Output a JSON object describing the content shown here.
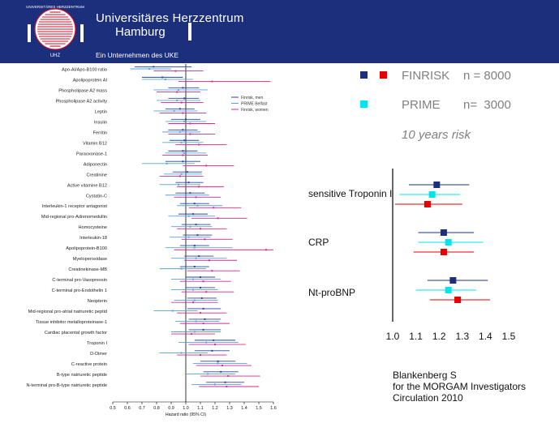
{
  "header": {
    "brand_line1": "Universitäres Herzzentrum",
    "brand_line2": "Hamburg",
    "subtitle": "Ein Unternehmen des UKE",
    "logo_ring_text": "UNIVERSITÄRES HERZZENTRUM",
    "logo_abbr": "UHZ",
    "colors": {
      "band": "#1c2f7d",
      "logo": "#c8102e"
    }
  },
  "legend": {
    "finrisk": {
      "label": "FINRISK",
      "n": "n = 8000",
      "colors": [
        "#1c2f7d",
        "#e60000"
      ]
    },
    "prime": {
      "label": "PRIME",
      "n": "n=  3000",
      "color": "#00e5ee"
    },
    "horizon": "10 years risk"
  },
  "citation": [
    "Blankenberg S",
    "for the MORGAM Investigators",
    "Circulation 2010"
  ],
  "chart_data": [
    {
      "type": "forest",
      "xlabel": "Hazard ratio (95% CI)",
      "xlim": [
        0.5,
        1.6
      ],
      "xticks": [
        0.5,
        0.6,
        0.7,
        0.8,
        0.9,
        1.0,
        1.1,
        1.2,
        1.3,
        1.4,
        1.5,
        1.6
      ],
      "xtick_labels": [
        "0.5",
        "0.6",
        "0.7",
        "0.8",
        "0.9",
        "1.0",
        "1.1",
        "1.2",
        "1.3",
        "1.4",
        "1.5",
        "1.6"
      ],
      "reference": 1.0,
      "legend_position": "upper-right",
      "series": [
        {
          "name": "Finrisk, men",
          "color": "#2b45a0"
        },
        {
          "name": "PRIME Belfast",
          "color": "#5aa0e0"
        },
        {
          "name": "Finrisk, women",
          "color": "#d62a8c"
        }
      ],
      "categories": [
        "Apo-AI/Apo-B100 ratio",
        "Apolipoprotein AI",
        "Phospholipase A2 mass",
        "Phospholipase A2 activity",
        "Leptin",
        "Insulin",
        "Ferritin",
        "Vitamin B12",
        "Paraoxonase-1",
        "Adiponectin",
        "Creatinine",
        "Active vitamine B12",
        "Cystatin-C",
        "Interleukin-1 receptor antagonist",
        "Mid-regional pro-Adrenomedullin",
        "Homocysteine",
        "Interleukin-18",
        "Apolipoprotein-B100",
        "Myeloperoxidase",
        "Creatinekinase-MB",
        "C-terminal pro-Vasopressin",
        "C-terminal pro-Endothelin 1",
        "Neopterin",
        "Mid-regional pro-atrial natriuretic peptid",
        "Tissue inhibitor metalloproteinase-1",
        "Cardiac placental growth factor",
        "Troponin I",
        "D-Dimer",
        "C-reactive protein",
        "B-type natriuretic peptide",
        "N-terminal pro-B-type natriuretic peptide"
      ],
      "estimates": {
        "Finrisk, men": [
          [
            0.78,
            0.65,
            1.04
          ],
          [
            0.84,
            0.7,
            0.98
          ],
          [
            0.98,
            0.88,
            1.09
          ],
          [
            0.99,
            0.88,
            1.09
          ],
          [
            0.96,
            0.86,
            1.06
          ],
          [
            1.0,
            0.9,
            1.1
          ],
          [
            0.98,
            0.88,
            1.08
          ],
          [
            0.99,
            0.89,
            1.09
          ],
          [
            0.98,
            0.88,
            1.08
          ],
          [
            0.98,
            0.86,
            1.1
          ],
          [
            1.01,
            0.91,
            1.11
          ],
          [
            1.02,
            0.93,
            1.12
          ],
          [
            1.03,
            0.93,
            1.13
          ],
          [
            1.06,
            0.96,
            1.16
          ],
          [
            1.05,
            0.95,
            1.15
          ],
          [
            1.07,
            0.97,
            1.17
          ],
          [
            1.08,
            0.98,
            1.18
          ],
          [
            1.06,
            0.96,
            1.16
          ],
          [
            1.09,
            0.99,
            1.19
          ],
          [
            1.06,
            0.96,
            1.16
          ],
          [
            1.1,
            1.0,
            1.2
          ],
          [
            1.1,
            1.0,
            1.2
          ],
          [
            1.11,
            1.01,
            1.21
          ],
          [
            1.12,
            1.01,
            1.24
          ],
          [
            1.13,
            1.02,
            1.24
          ],
          [
            1.12,
            1.02,
            1.24
          ],
          [
            1.19,
            1.06,
            1.34
          ],
          [
            1.18,
            1.06,
            1.3
          ],
          [
            1.22,
            1.1,
            1.34
          ],
          [
            1.24,
            1.12,
            1.36
          ],
          [
            1.27,
            1.14,
            1.4
          ]
        ],
        "PRIME Belfast": [
          [
            0.75,
            0.62,
            0.9
          ],
          [
            0.86,
            0.7,
            1.05
          ],
          [
            0.95,
            0.78,
            1.15
          ],
          [
            0.94,
            0.8,
            1.1
          ],
          [
            0.92,
            0.78,
            1.08
          ],
          [
            0.99,
            0.86,
            1.14
          ],
          [
            0.96,
            0.84,
            1.1
          ],
          [
            0.97,
            0.84,
            1.12
          ],
          [
            0.99,
            0.86,
            1.14
          ],
          [
            0.87,
            0.7,
            1.06
          ],
          [
            0.97,
            0.85,
            1.11
          ],
          [
            0.95,
            0.82,
            1.1
          ],
          [
            1.0,
            0.86,
            1.16
          ],
          [
            1.08,
            0.94,
            1.25
          ],
          [
            1.02,
            0.88,
            1.2
          ],
          [
            1.03,
            0.9,
            1.18
          ],
          [
            1.02,
            0.89,
            1.17
          ],
          [
            1.06,
            0.86,
            1.32
          ],
          [
            1.07,
            0.9,
            1.28
          ],
          [
            0.97,
            0.82,
            1.14
          ],
          [
            1.05,
            0.9,
            1.24
          ],
          [
            1.05,
            0.9,
            1.22
          ],
          [
            1.06,
            0.92,
            1.22
          ],
          [
            0.91,
            0.78,
            1.08
          ],
          [
            1.07,
            0.93,
            1.23
          ],
          [
            1.06,
            0.9,
            1.24
          ],
          [
            1.14,
            0.95,
            1.36
          ],
          [
            0.97,
            0.82,
            1.15
          ],
          [
            1.22,
            1.05,
            1.42
          ],
          [
            1.15,
            1.0,
            1.34
          ],
          [
            1.2,
            1.04,
            1.38
          ]
        ],
        "Finrisk, women": [
          [
            0.93,
            0.78,
            1.12
          ],
          [
            1.18,
            0.95,
            1.58
          ],
          [
            0.94,
            0.8,
            1.1
          ],
          [
            0.97,
            0.83,
            1.12
          ],
          [
            0.98,
            0.82,
            1.14
          ],
          [
            1.03,
            0.88,
            1.2
          ],
          [
            1.03,
            0.88,
            1.2
          ],
          [
            1.09,
            0.93,
            1.28
          ],
          [
            0.98,
            0.84,
            1.15
          ],
          [
            1.14,
            0.98,
            1.33
          ],
          [
            0.96,
            0.82,
            1.12
          ],
          [
            1.09,
            0.94,
            1.26
          ],
          [
            1.07,
            0.92,
            1.24
          ],
          [
            1.19,
            1.02,
            1.38
          ],
          [
            1.22,
            1.04,
            1.42
          ],
          [
            1.1,
            0.94,
            1.28
          ],
          [
            1.13,
            0.97,
            1.32
          ],
          [
            1.55,
            0.92,
            1.6
          ],
          [
            1.16,
            0.99,
            1.35
          ],
          [
            1.18,
            1.01,
            1.37
          ],
          [
            1.12,
            0.96,
            1.31
          ],
          [
            1.14,
            0.97,
            1.33
          ],
          [
            1.05,
            0.9,
            1.22
          ],
          [
            1.1,
            0.94,
            1.28
          ],
          [
            1.12,
            0.96,
            1.3
          ],
          [
            1.04,
            0.9,
            1.2
          ],
          [
            1.2,
            1.02,
            1.41
          ],
          [
            1.1,
            0.94,
            1.28
          ],
          [
            1.25,
            1.07,
            1.45
          ],
          [
            1.29,
            1.1,
            1.51
          ],
          [
            1.28,
            1.09,
            1.5
          ]
        ]
      }
    },
    {
      "type": "forest",
      "xlim": [
        1.0,
        1.5
      ],
      "xticks": [
        1.0,
        1.1,
        1.2,
        1.3,
        1.4,
        1.5
      ],
      "xtick_labels": [
        "1.0",
        "1.1",
        "1.2",
        "1.3",
        "1.4",
        "1.5"
      ],
      "reference": 1.0,
      "groups": [
        "sensitive Troponin I",
        "CRP",
        "Nt-proBNP"
      ],
      "series": [
        {
          "name": "FINRISK (men)",
          "color": "#1c2f7d",
          "values": [
            [
              1.19,
              1.07,
              1.33
            ],
            [
              1.22,
              1.11,
              1.35
            ],
            [
              1.26,
              1.15,
              1.41
            ]
          ]
        },
        {
          "name": "PRIME",
          "color": "#00e5ee",
          "values": [
            [
              1.17,
              1.03,
              1.29
            ],
            [
              1.24,
              1.11,
              1.39
            ],
            [
              1.24,
              1.1,
              1.36
            ]
          ]
        },
        {
          "name": "FINRISK (women)",
          "color": "#e60000",
          "values": [
            [
              1.15,
              1.01,
              1.3
            ],
            [
              1.22,
              1.09,
              1.35
            ],
            [
              1.28,
              1.16,
              1.42
            ]
          ]
        }
      ]
    }
  ]
}
